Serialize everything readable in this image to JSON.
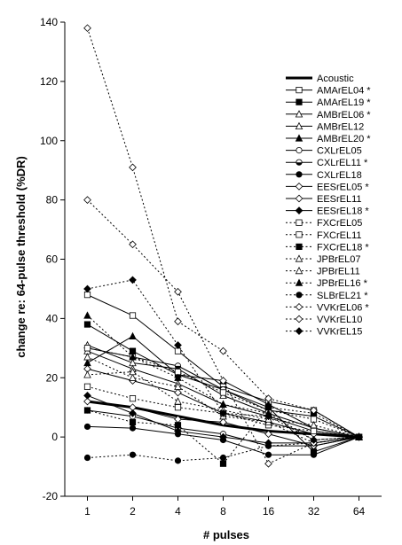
{
  "chart_data": {
    "type": "line",
    "xlabel": "# pulses",
    "ylabel": "change re: 64-pulse threshold (%DR)",
    "categories": [
      "1",
      "2",
      "4",
      "8",
      "16",
      "32",
      "64"
    ],
    "yticks": [
      "140",
      "120",
      "100",
      "80",
      "60",
      "40",
      "20",
      "0",
      "-20"
    ],
    "ylim": [
      -20,
      140
    ],
    "grid": false,
    "legend_position": "top-right",
    "series": [
      {
        "name": "Acoustic",
        "style": "thick",
        "marker": "none",
        "values": [
          12,
          10,
          7,
          4,
          2,
          1,
          0
        ]
      },
      {
        "name": "AMArEL04 *",
        "style": "solid",
        "marker": "square-open",
        "values": [
          48,
          41,
          29,
          17,
          12,
          9,
          0
        ]
      },
      {
        "name": "AMArEL19 *",
        "style": "solid",
        "marker": "square-filled",
        "values": [
          38,
          29,
          21,
          16,
          10,
          -5,
          0
        ]
      },
      {
        "name": "AMBrEL06 *",
        "style": "solid",
        "marker": "triangle-open",
        "values": [
          31,
          25,
          23,
          14,
          8,
          3,
          0
        ]
      },
      {
        "name": "AMBrEL12",
        "style": "solid",
        "marker": "triangle-open",
        "values": [
          29,
          23,
          18,
          11,
          7,
          2,
          0
        ]
      },
      {
        "name": "AMBrEL20 *",
        "style": "solid",
        "marker": "triangle-filled",
        "values": [
          25,
          34,
          21,
          19,
          11,
          3,
          0
        ]
      },
      {
        "name": "CXLrEL05",
        "style": "solid",
        "marker": "circle-open",
        "values": [
          9,
          7,
          3,
          1,
          -3,
          -3,
          0
        ]
      },
      {
        "name": "CXLrEL11 *",
        "style": "solid",
        "marker": "circle-half",
        "values": [
          30,
          27,
          24,
          16,
          9,
          7,
          0
        ]
      },
      {
        "name": "CXLrEL18",
        "style": "solid",
        "marker": "circle-filled",
        "values": [
          3.5,
          3,
          1,
          -1,
          -6,
          -6,
          0
        ]
      },
      {
        "name": "EESrEL05 *",
        "style": "solid",
        "marker": "diamond-open",
        "values": [
          23,
          19,
          15,
          8,
          5,
          1,
          0
        ]
      },
      {
        "name": "EESrEL11",
        "style": "solid",
        "marker": "diamond-open",
        "values": [
          12,
          10,
          6,
          5,
          1,
          -3,
          0
        ]
      },
      {
        "name": "EESrEL18 *",
        "style": "solid",
        "marker": "diamond-filled",
        "values": [
          14,
          8,
          2,
          0,
          -2,
          -2,
          0
        ]
      },
      {
        "name": "FXCrEL05",
        "style": "dotted",
        "marker": "square-open",
        "values": [
          17,
          13,
          10,
          8,
          4,
          2,
          0
        ]
      },
      {
        "name": "FXCrEL11",
        "style": "dotted",
        "marker": "square-open",
        "values": [
          30,
          27,
          22,
          15,
          9,
          6,
          0
        ]
      },
      {
        "name": "FXCrEL18 *",
        "style": "dotted",
        "marker": "square-filled",
        "values": [
          9,
          5,
          4,
          -9,
          10,
          8,
          0
        ]
      },
      {
        "name": "JPBrEL07",
        "style": "dotted",
        "marker": "triangle-open",
        "values": [
          27,
          20,
          17,
          7,
          5,
          -2,
          0
        ]
      },
      {
        "name": "JPBrEL11",
        "style": "dotted",
        "marker": "triangle-open",
        "values": [
          21,
          22,
          12,
          9,
          6,
          4,
          0
        ]
      },
      {
        "name": "JPBrEL16 *",
        "style": "dotted",
        "marker": "triangle-filled",
        "values": [
          41,
          27,
          20,
          11,
          8,
          -1,
          0
        ]
      },
      {
        "name": "SLBrEL21 *",
        "style": "dotted",
        "marker": "circle-filled",
        "values": [
          -7,
          -6,
          -8,
          -7,
          -3,
          -2,
          0
        ]
      },
      {
        "name": "VVKrEL06 *",
        "style": "dotted",
        "marker": "diamond-open",
        "values": [
          138,
          91,
          39,
          29,
          13,
          9,
          0
        ]
      },
      {
        "name": "VVKrEL10",
        "style": "dotted",
        "marker": "diamond-open",
        "values": [
          80,
          65,
          49,
          19,
          -9,
          -2,
          0
        ]
      },
      {
        "name": "VVKrEL15",
        "style": "dotted",
        "marker": "diamond-filled",
        "values": [
          50,
          53,
          31,
          8,
          7,
          -1,
          0
        ]
      }
    ]
  }
}
